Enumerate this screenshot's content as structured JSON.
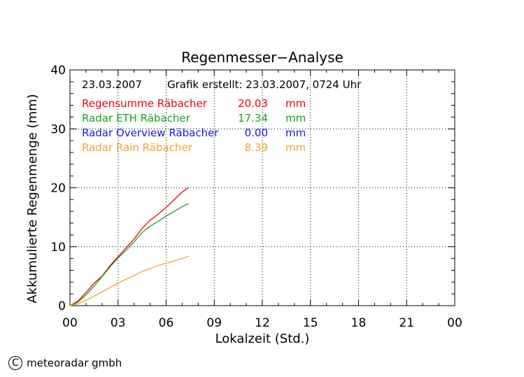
{
  "chart_data": {
    "type": "line",
    "title": "Regenmesser−Analyse",
    "xlabel": "Lokalzeit (Std.)",
    "ylabel": "Akkumulierte Regenmenge (mm)",
    "xlim": [
      0,
      24
    ],
    "ylim": [
      0,
      40
    ],
    "x_ticks": [
      "00",
      "03",
      "06",
      "09",
      "12",
      "15",
      "18",
      "21",
      "00"
    ],
    "y_ticks": [
      "0",
      "10",
      "20",
      "30",
      "40"
    ],
    "grid": true,
    "date": "23.03.2007",
    "created": "Grafik erstellt: 23.03.2007, 0724 Uhr",
    "legend": "top-left",
    "series": [
      {
        "name": "Regensumme Räbacher",
        "value": "20.03",
        "unit": "mm",
        "color": "#e8000c",
        "x": [
          0,
          0.5,
          1,
          1.5,
          2,
          2.5,
          3,
          3.5,
          4,
          4.5,
          5,
          5.5,
          6,
          6.5,
          7,
          7.4
        ],
        "y": [
          0,
          0.8,
          2.2,
          3.8,
          5.0,
          6.8,
          8.3,
          9.8,
          11.3,
          13.1,
          14.5,
          15.5,
          16.7,
          18.0,
          19.3,
          20.03
        ]
      },
      {
        "name": "Radar ETH Räbacher",
        "value": "17.34",
        "unit": "mm",
        "color": "#1a9e1a",
        "x": [
          0,
          0.5,
          1,
          1.5,
          2,
          2.5,
          3,
          3.5,
          4,
          4.5,
          5,
          5.5,
          6,
          6.5,
          7,
          7.4
        ],
        "y": [
          0,
          0.6,
          1.8,
          3.3,
          4.9,
          6.6,
          8.1,
          9.4,
          10.8,
          12.4,
          13.5,
          14.3,
          15.2,
          16.0,
          16.8,
          17.34
        ]
      },
      {
        "name": "Radar Overview Räbacher",
        "value": "0.00",
        "unit": "mm",
        "color": "#1a1acd",
        "x": [],
        "y": []
      },
      {
        "name": "Radar Rain Räbacher",
        "value": "8.39",
        "unit": "mm",
        "color": "#f0a030",
        "x": [
          0,
          0.5,
          1,
          1.5,
          2,
          2.5,
          3,
          3.5,
          4,
          4.5,
          5,
          5.5,
          6,
          6.5,
          7,
          7.4
        ],
        "y": [
          0,
          0.3,
          0.9,
          1.6,
          2.3,
          3.1,
          3.8,
          4.5,
          5.1,
          5.8,
          6.3,
          6.8,
          7.2,
          7.6,
          8.0,
          8.39
        ]
      }
    ]
  },
  "footer": {
    "copyright_symbol": "C",
    "copyright_text": "meteoradar gmbh"
  }
}
